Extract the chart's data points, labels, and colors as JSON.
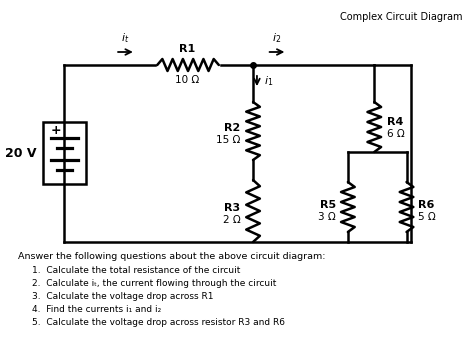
{
  "title": "Complex Circuit Diagram",
  "voltage": "20 V",
  "bg_color": "#ffffff",
  "resistors": {
    "R1": "10 Ω",
    "R2": "15 Ω",
    "R3": "2 Ω",
    "R4": "6 Ω",
    "R5": "3 Ω",
    "R6": "5 Ω"
  },
  "questions_header": "Answer the following questions about the above circuit diagram:",
  "questions": [
    "1.  Calculate the total resistance of the circuit",
    "2.  Calculate iₜ, the current flowing through the circuit",
    "3.  Calculate the voltage drop across R1",
    "4.  Find the currents i₁ and i₂",
    "5.  Calculate the voltage drop across resistor R3 and R6"
  ],
  "line_color": "#000000",
  "text_color": "#000000"
}
